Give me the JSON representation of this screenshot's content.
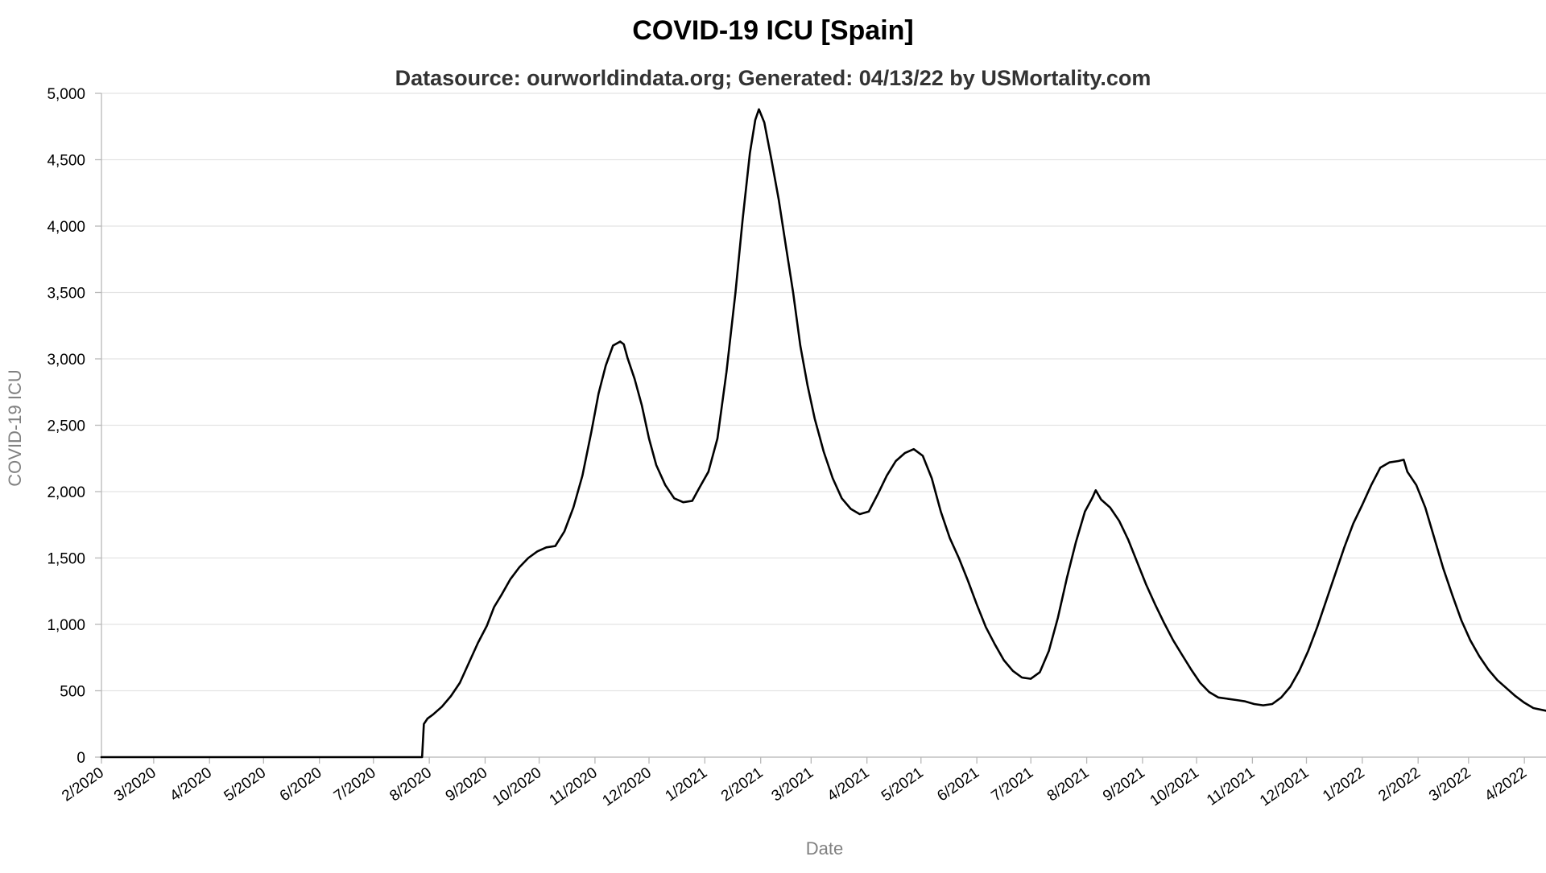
{
  "chart_data": {
    "type": "line",
    "title": "COVID-19 ICU [Spain]",
    "subtitle": "Datasource: ourworldindata.org; Generated: 04/13/22 by USMortality.com",
    "xlabel": "Date",
    "ylabel": "COVID-19 ICU",
    "ylim": [
      0,
      5000
    ],
    "y_ticks": [
      "0",
      "500",
      "1,000",
      "1,500",
      "2,000",
      "2,500",
      "3,000",
      "3,500",
      "4,000",
      "4,500",
      "5,000"
    ],
    "x_ticks": [
      "2/2020",
      "3/2020",
      "4/2020",
      "5/2020",
      "6/2020",
      "7/2020",
      "8/2020",
      "9/2020",
      "10/2020",
      "11/2020",
      "12/2020",
      "1/2021",
      "2/2021",
      "3/2021",
      "4/2021",
      "5/2021",
      "6/2021",
      "7/2021",
      "8/2021",
      "9/2021",
      "10/2021",
      "11/2021",
      "12/2021",
      "1/2022",
      "2/2022",
      "3/2022",
      "4/2022"
    ],
    "x_axis_type": "datetime",
    "xlim": [
      "2020-02-01",
      "2022-04-13"
    ],
    "grid": true,
    "legend": "none",
    "line_color": "#000000",
    "series": [
      {
        "points": [
          [
            "2020-02-01",
            0
          ],
          [
            "2020-07-28",
            0
          ],
          [
            "2020-07-29",
            250
          ],
          [
            "2020-07-31",
            290
          ],
          [
            "2020-08-03",
            320
          ],
          [
            "2020-08-08",
            380
          ],
          [
            "2020-08-13",
            460
          ],
          [
            "2020-08-18",
            560
          ],
          [
            "2020-08-23",
            710
          ],
          [
            "2020-08-28",
            860
          ],
          [
            "2020-09-02",
            990
          ],
          [
            "2020-09-06",
            1130
          ],
          [
            "2020-09-10",
            1220
          ],
          [
            "2020-09-15",
            1340
          ],
          [
            "2020-09-20",
            1430
          ],
          [
            "2020-09-25",
            1500
          ],
          [
            "2020-09-30",
            1550
          ],
          [
            "2020-10-05",
            1580
          ],
          [
            "2020-10-10",
            1590
          ],
          [
            "2020-10-15",
            1700
          ],
          [
            "2020-10-20",
            1880
          ],
          [
            "2020-10-25",
            2120
          ],
          [
            "2020-10-30",
            2450
          ],
          [
            "2020-11-03",
            2740
          ],
          [
            "2020-11-07",
            2950
          ],
          [
            "2020-11-11",
            3100
          ],
          [
            "2020-11-15",
            3130
          ],
          [
            "2020-11-17",
            3110
          ],
          [
            "2020-11-19",
            3010
          ],
          [
            "2020-11-23",
            2850
          ],
          [
            "2020-11-27",
            2650
          ],
          [
            "2020-12-01",
            2400
          ],
          [
            "2020-12-05",
            2200
          ],
          [
            "2020-12-10",
            2050
          ],
          [
            "2020-12-15",
            1950
          ],
          [
            "2020-12-20",
            1920
          ],
          [
            "2020-12-25",
            1930
          ],
          [
            "2020-12-29",
            2030
          ],
          [
            "2021-01-03",
            2150
          ],
          [
            "2021-01-08",
            2400
          ],
          [
            "2021-01-13",
            2900
          ],
          [
            "2021-01-18",
            3500
          ],
          [
            "2021-01-22",
            4050
          ],
          [
            "2021-01-26",
            4550
          ],
          [
            "2021-01-29",
            4800
          ],
          [
            "2021-01-31",
            4880
          ],
          [
            "2021-02-03",
            4780
          ],
          [
            "2021-02-07",
            4500
          ],
          [
            "2021-02-11",
            4200
          ],
          [
            "2021-02-15",
            3850
          ],
          [
            "2021-02-19",
            3500
          ],
          [
            "2021-02-23",
            3100
          ],
          [
            "2021-02-27",
            2800
          ],
          [
            "2021-03-03",
            2550
          ],
          [
            "2021-03-08",
            2300
          ],
          [
            "2021-03-13",
            2100
          ],
          [
            "2021-03-18",
            1950
          ],
          [
            "2021-03-23",
            1870
          ],
          [
            "2021-03-28",
            1830
          ],
          [
            "2021-04-02",
            1850
          ],
          [
            "2021-04-07",
            1980
          ],
          [
            "2021-04-12",
            2120
          ],
          [
            "2021-04-17",
            2230
          ],
          [
            "2021-04-22",
            2290
          ],
          [
            "2021-04-27",
            2320
          ],
          [
            "2021-05-02",
            2270
          ],
          [
            "2021-05-07",
            2100
          ],
          [
            "2021-05-12",
            1850
          ],
          [
            "2021-05-17",
            1650
          ],
          [
            "2021-05-22",
            1500
          ],
          [
            "2021-05-27",
            1330
          ],
          [
            "2021-06-01",
            1150
          ],
          [
            "2021-06-06",
            980
          ],
          [
            "2021-06-11",
            850
          ],
          [
            "2021-06-16",
            730
          ],
          [
            "2021-06-21",
            650
          ],
          [
            "2021-06-26",
            600
          ],
          [
            "2021-07-01",
            590
          ],
          [
            "2021-07-06",
            640
          ],
          [
            "2021-07-11",
            800
          ],
          [
            "2021-07-16",
            1050
          ],
          [
            "2021-07-21",
            1350
          ],
          [
            "2021-07-26",
            1620
          ],
          [
            "2021-07-31",
            1850
          ],
          [
            "2021-08-04",
            1950
          ],
          [
            "2021-08-06",
            2010
          ],
          [
            "2021-08-09",
            1940
          ],
          [
            "2021-08-14",
            1880
          ],
          [
            "2021-08-19",
            1780
          ],
          [
            "2021-08-24",
            1640
          ],
          [
            "2021-08-29",
            1470
          ],
          [
            "2021-09-03",
            1300
          ],
          [
            "2021-09-08",
            1150
          ],
          [
            "2021-09-13",
            1010
          ],
          [
            "2021-09-18",
            880
          ],
          [
            "2021-09-23",
            770
          ],
          [
            "2021-09-28",
            660
          ],
          [
            "2021-10-03",
            560
          ],
          [
            "2021-10-08",
            490
          ],
          [
            "2021-10-13",
            450
          ],
          [
            "2021-10-18",
            440
          ],
          [
            "2021-10-23",
            430
          ],
          [
            "2021-10-28",
            420
          ],
          [
            "2021-11-02",
            400
          ],
          [
            "2021-11-07",
            390
          ],
          [
            "2021-11-12",
            400
          ],
          [
            "2021-11-17",
            450
          ],
          [
            "2021-11-22",
            530
          ],
          [
            "2021-11-27",
            650
          ],
          [
            "2021-12-02",
            800
          ],
          [
            "2021-12-07",
            980
          ],
          [
            "2021-12-12",
            1180
          ],
          [
            "2021-12-17",
            1380
          ],
          [
            "2021-12-22",
            1580
          ],
          [
            "2021-12-27",
            1760
          ],
          [
            "2022-01-01",
            1900
          ],
          [
            "2022-01-06",
            2050
          ],
          [
            "2022-01-11",
            2180
          ],
          [
            "2022-01-16",
            2220
          ],
          [
            "2022-01-21",
            2230
          ],
          [
            "2022-01-24",
            2240
          ],
          [
            "2022-01-26",
            2150
          ],
          [
            "2022-01-31",
            2050
          ],
          [
            "2022-02-05",
            1880
          ],
          [
            "2022-02-10",
            1650
          ],
          [
            "2022-02-15",
            1420
          ],
          [
            "2022-02-20",
            1220
          ],
          [
            "2022-02-25",
            1030
          ],
          [
            "2022-03-02",
            880
          ],
          [
            "2022-03-07",
            760
          ],
          [
            "2022-03-12",
            660
          ],
          [
            "2022-03-17",
            580
          ],
          [
            "2022-03-22",
            520
          ],
          [
            "2022-03-27",
            460
          ],
          [
            "2022-04-01",
            410
          ],
          [
            "2022-04-06",
            370
          ],
          [
            "2022-04-13",
            350
          ]
        ]
      }
    ]
  }
}
